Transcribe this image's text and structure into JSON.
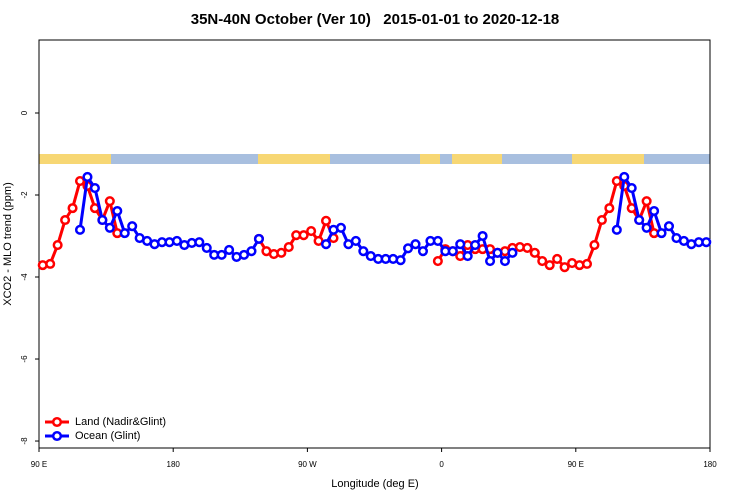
{
  "chart_data": {
    "type": "line",
    "title": "35N-40N October (Ver 10)   2015-01-01 to 2020-12-18",
    "xlabel": "Longitude (deg E)",
    "ylabel": "XCO2 - MLO trend (ppm)",
    "xlim": [
      90,
      540
    ],
    "xticks": [
      {
        "value": 90,
        "label": "90 E"
      },
      180,
      {
        "value": 270,
        "label": "90 W"
      },
      {
        "value": 360,
        "label": "0"
      },
      {
        "value": 450,
        "label": "90 E"
      },
      {
        "value": 540,
        "label": "180"
      }
    ],
    "ylim": [
      -8.17,
      1.78
    ],
    "yticks": [
      -8,
      -6,
      -4,
      -2,
      0
    ],
    "legend": "bottom-left",
    "x": [
      92.5,
      97.5,
      102.5,
      107.5,
      112.5,
      117.5,
      122.5,
      127.5,
      132.5,
      137.5,
      142.5,
      147.5,
      152.5,
      157.5,
      162.5,
      167.5,
      172.5,
      177.5,
      182.5,
      187.5,
      192.5,
      197.5,
      202.5,
      207.5,
      212.5,
      217.5,
      222.5,
      227.5,
      232.5,
      237.5,
      242.5,
      247.5,
      252.5,
      257.5,
      262.5,
      267.5,
      272.5,
      277.5,
      282.5,
      287.5,
      292.5,
      297.5,
      302.5,
      307.5,
      312.5,
      317.5,
      322.5,
      327.5,
      332.5,
      337.5,
      342.5,
      347.5,
      352.5,
      357.5,
      362.5,
      367.5,
      372.5,
      377.5,
      382.5,
      387.5,
      392.5,
      397.5,
      402.5,
      407.5,
      412.5,
      417.5,
      422.5,
      427.5,
      432.5,
      437.5,
      442.5,
      447.5,
      452.5,
      457.5,
      462.5,
      467.5,
      472.5,
      477.5,
      482.5,
      487.5,
      492.5,
      497.5,
      502.5,
      507.5,
      512.5,
      517.5,
      522.5,
      527.5,
      532.5,
      537.5
    ],
    "series": [
      {
        "name": "Land (Nadir&Glint)",
        "color": "#ff0000",
        "values": [
          -3.71,
          -3.68,
          -3.22,
          -2.61,
          -2.32,
          -1.66,
          -1.78,
          -2.32,
          -2.61,
          -2.15,
          -2.93,
          null,
          null,
          null,
          null,
          null,
          null,
          null,
          null,
          null,
          null,
          null,
          null,
          null,
          null,
          null,
          null,
          null,
          null,
          -3.07,
          -3.37,
          -3.44,
          -3.41,
          -3.27,
          -2.98,
          -2.98,
          -2.88,
          -3.12,
          -2.63,
          -3.05,
          null,
          null,
          null,
          null,
          null,
          null,
          null,
          null,
          null,
          null,
          null,
          null,
          null,
          -3.61,
          -3.32,
          -3.37,
          -3.49,
          -3.22,
          -3.32,
          -3.32,
          -3.32,
          -3.41,
          -3.37,
          -3.29,
          -3.27,
          -3.29,
          -3.41,
          -3.61,
          -3.71,
          -3.56,
          -3.76,
          -3.66,
          -3.71,
          -3.68,
          -3.22,
          -2.61,
          -2.32,
          -1.66,
          -1.78,
          -2.32,
          -2.61,
          -2.15,
          -2.93,
          null,
          null,
          null,
          null,
          null,
          null,
          null
        ]
      },
      {
        "name": "Ocean (Glint)",
        "color": "#0000ff",
        "values": [
          null,
          null,
          null,
          null,
          null,
          -2.85,
          -1.56,
          -1.83,
          -2.61,
          -2.8,
          -2.39,
          -2.93,
          -2.76,
          -3.05,
          -3.12,
          -3.2,
          -3.15,
          -3.15,
          -3.12,
          -3.22,
          -3.17,
          -3.15,
          -3.29,
          -3.46,
          -3.46,
          -3.34,
          -3.51,
          -3.46,
          -3.37,
          -3.07,
          null,
          null,
          null,
          null,
          null,
          null,
          null,
          null,
          -3.2,
          -2.85,
          -2.8,
          -3.2,
          -3.12,
          -3.37,
          -3.49,
          -3.56,
          -3.56,
          -3.56,
          -3.59,
          -3.3,
          -3.2,
          -3.37,
          -3.12,
          -3.12,
          -3.37,
          -3.37,
          -3.2,
          -3.49,
          -3.22,
          -3.0,
          -3.61,
          -3.41,
          -3.61,
          -3.41,
          null,
          null,
          null,
          null,
          null,
          null,
          null,
          null,
          null,
          null,
          null,
          null,
          null,
          -2.85,
          -1.56,
          -1.83,
          -2.61,
          -2.8,
          -2.39,
          -2.93,
          -2.76,
          -3.05,
          -3.12,
          -3.2,
          -3.15,
          -3.15
        ]
      }
    ]
  }
}
